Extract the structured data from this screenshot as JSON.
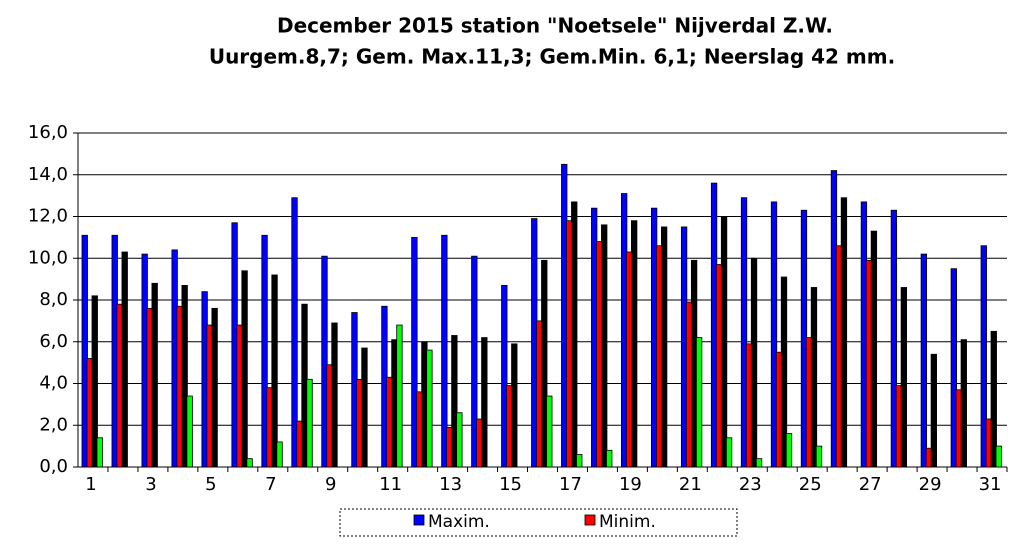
{
  "chart_data": {
    "type": "bar",
    "title": "December 2015 station \"Noetsele\" Nijverdal Z.W.",
    "subtitle": "Uurgem.8,7; Gem. Max.11,3; Gem.Min. 6,1; Neerslag 42 mm.",
    "categories": [
      "1",
      null,
      "3",
      null,
      "5",
      null,
      "7",
      null,
      "9",
      null,
      "11",
      null,
      "13",
      null,
      "15",
      null,
      "17",
      null,
      "19",
      null,
      "21",
      null,
      "23",
      null,
      "25",
      null,
      "27",
      null,
      "29",
      null,
      "31"
    ],
    "series": [
      {
        "name": "Maxim.",
        "color": "#0000ff",
        "values": [
          11.1,
          11.1,
          10.2,
          10.4,
          8.4,
          11.7,
          11.1,
          12.9,
          10.1,
          7.4,
          7.7,
          11.0,
          11.1,
          10.1,
          8.7,
          11.9,
          14.5,
          12.4,
          13.1,
          12.4,
          11.5,
          13.6,
          12.9,
          12.7,
          12.3,
          14.2,
          12.7,
          12.3,
          10.2,
          9.5,
          10.6
        ]
      },
      {
        "name": "Minim.",
        "color": "#ff0000",
        "values": [
          5.2,
          7.8,
          7.6,
          7.7,
          6.8,
          6.8,
          3.8,
          2.2,
          4.9,
          4.2,
          4.3,
          3.6,
          1.9,
          2.3,
          3.9,
          7.0,
          11.8,
          10.8,
          10.3,
          10.6,
          7.9,
          9.7,
          5.9,
          5.5,
          6.2,
          10.6,
          9.9,
          3.9,
          0.9,
          3.7,
          2.3
        ]
      },
      {
        "color": "#000000",
        "values": [
          8.2,
          10.3,
          8.8,
          8.7,
          7.6,
          9.4,
          9.2,
          7.8,
          6.9,
          5.7,
          6.1,
          6.0,
          6.3,
          6.2,
          5.9,
          9.9,
          12.7,
          11.6,
          11.8,
          11.5,
          9.9,
          12.0,
          10.0,
          9.1,
          8.6,
          12.9,
          11.3,
          8.6,
          5.4,
          6.1,
          6.5
        ]
      },
      {
        "color": "#00ff00",
        "values": [
          1.4,
          0,
          0,
          3.4,
          0,
          0.4,
          1.2,
          4.2,
          0,
          0,
          6.8,
          5.6,
          2.6,
          0,
          0,
          3.4,
          0.6,
          0.8,
          0,
          0,
          6.2,
          1.4,
          0.4,
          1.6,
          1.0,
          0,
          0,
          0,
          0,
          0,
          1.0
        ]
      }
    ],
    "ylim": [
      0,
      16
    ],
    "yticks": [
      {
        "value": 0,
        "label": "0,0"
      },
      {
        "value": 2,
        "label": "2,0"
      },
      {
        "value": 4,
        "label": "4,0"
      },
      {
        "value": 6,
        "label": "6,0"
      },
      {
        "value": 8,
        "label": "8,0"
      },
      {
        "value": 10,
        "label": "10,0"
      },
      {
        "value": 12,
        "label": "12,0"
      },
      {
        "value": 14,
        "label": "14,0"
      },
      {
        "value": 16,
        "label": "16,0"
      }
    ],
    "grid": true
  }
}
